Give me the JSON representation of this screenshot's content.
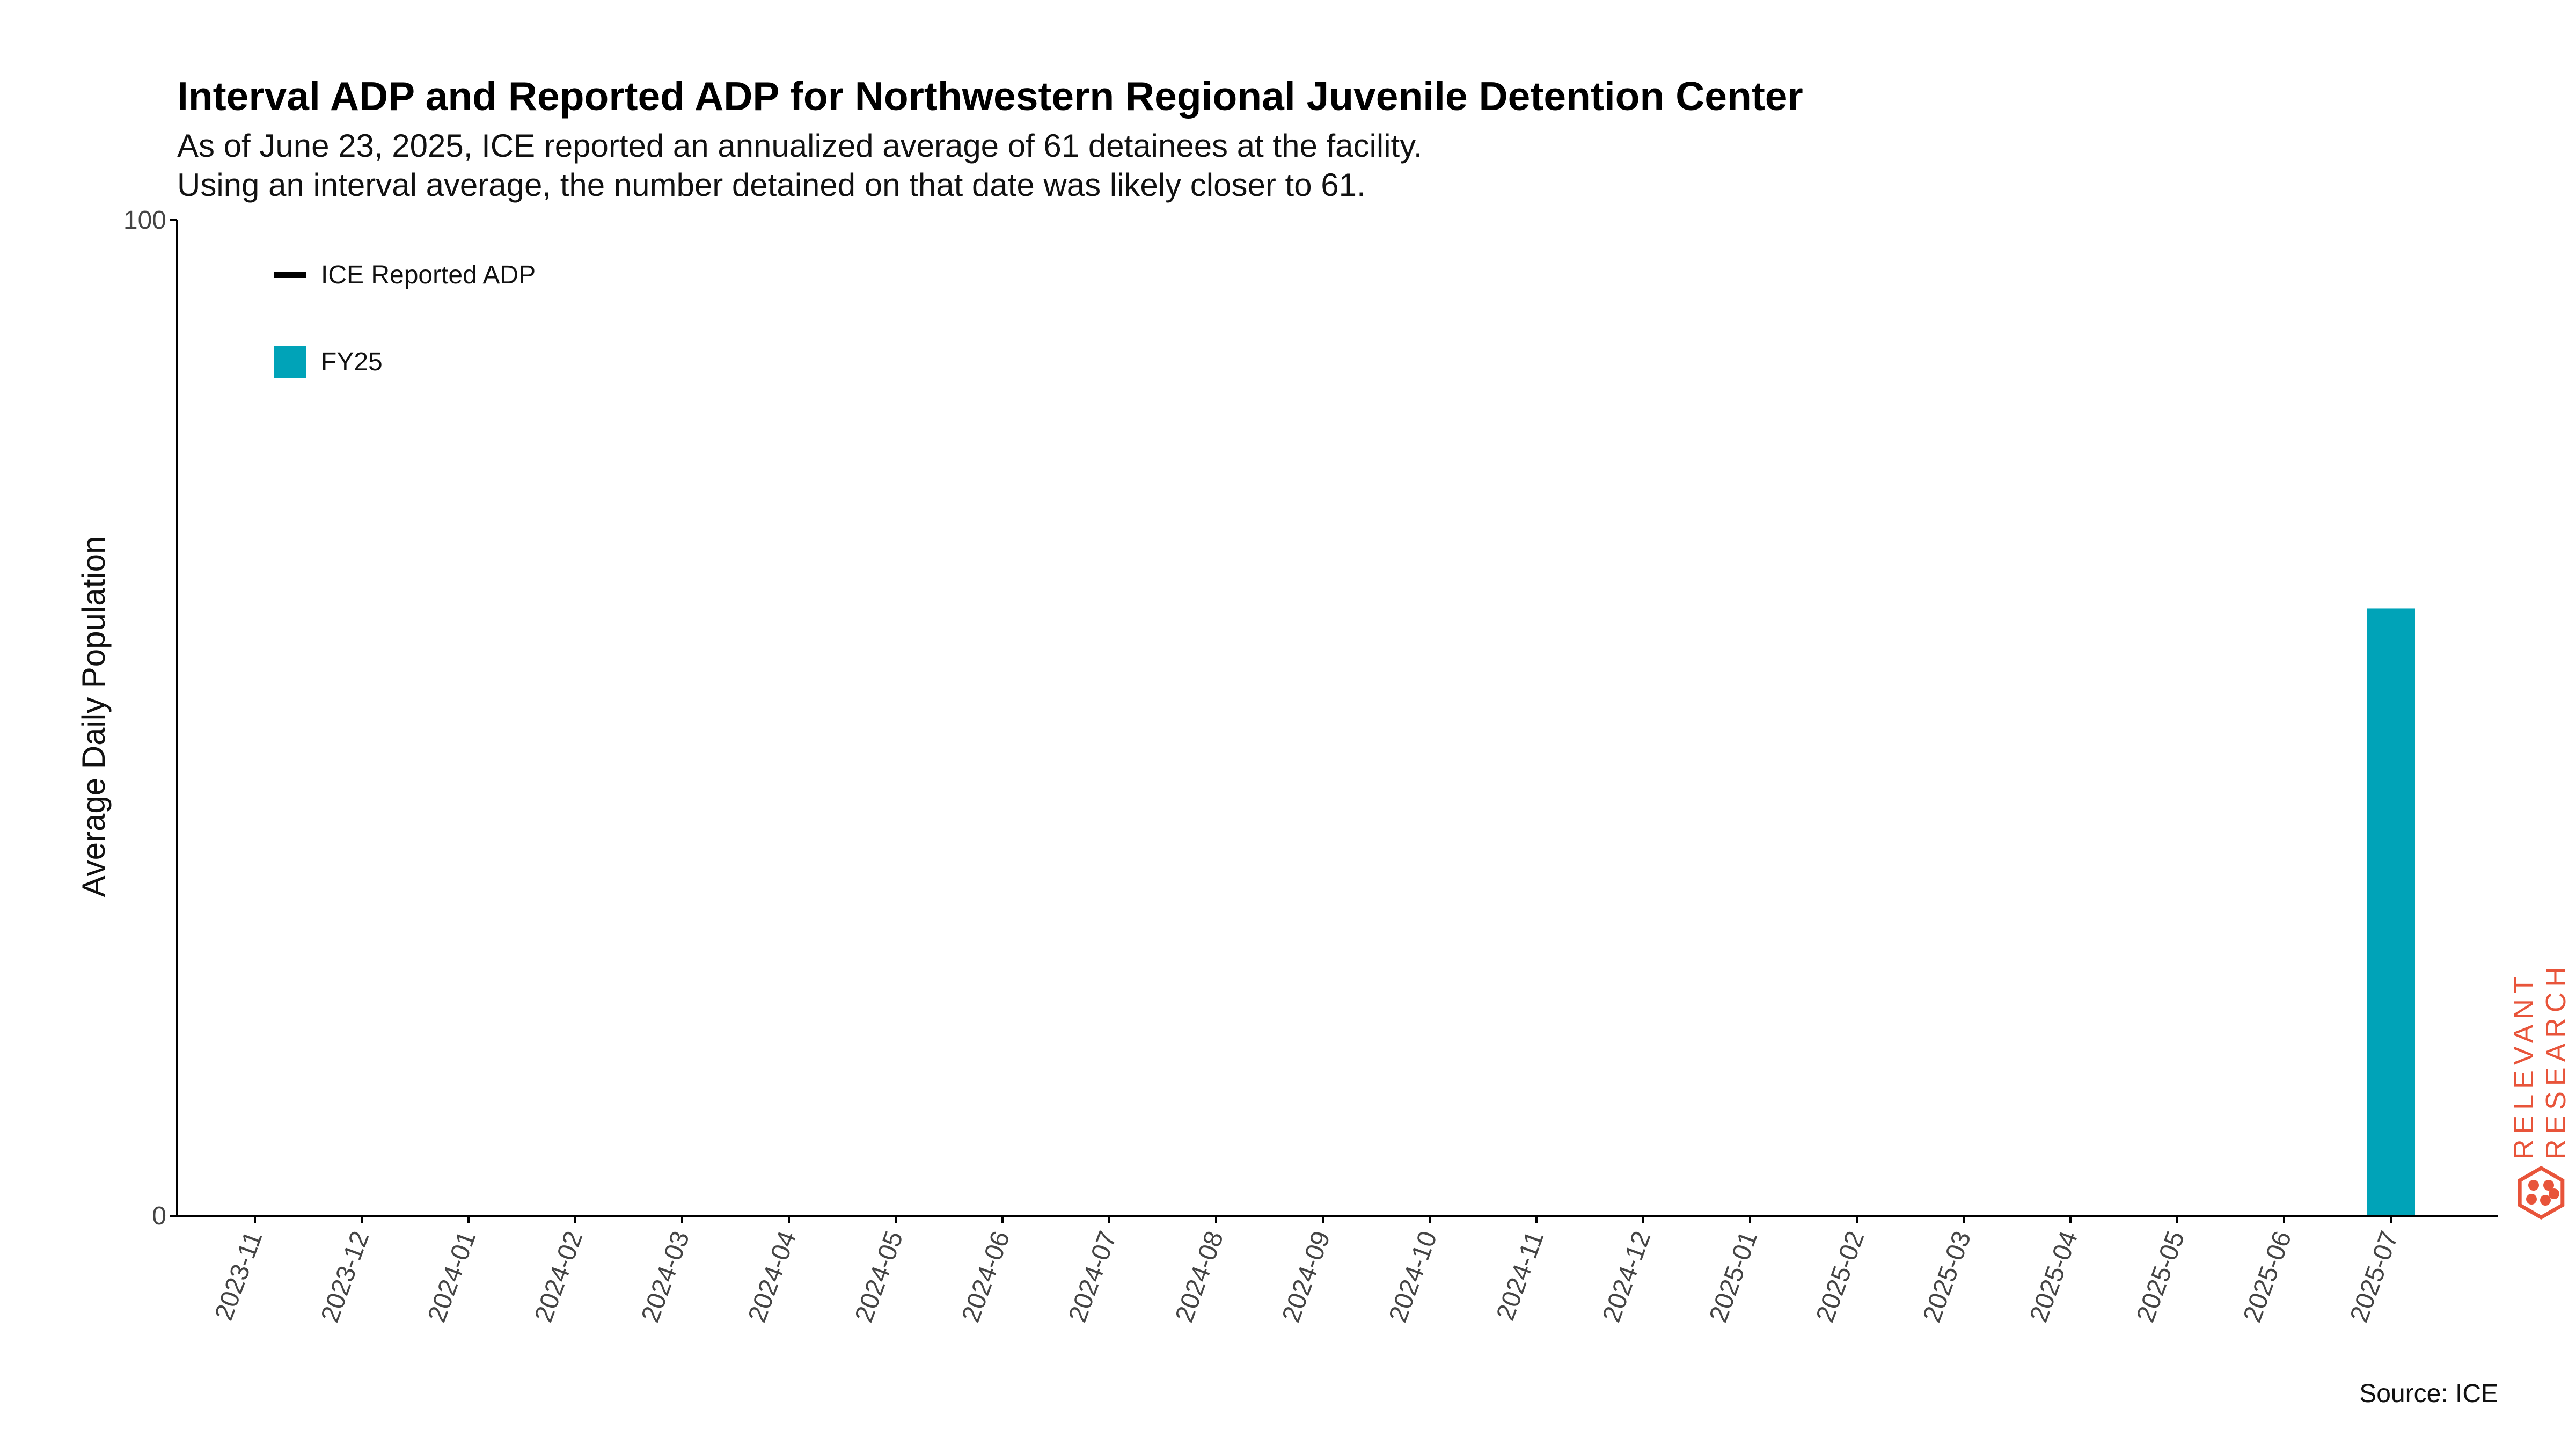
{
  "chart_data": {
    "type": "bar",
    "title": "Interval ADP and Reported ADP for Northwestern Regional Juvenile Detention Center",
    "subtitle_lines": [
      "As of June 23, 2025, ICE reported an annualized average of 61 detainees at the facility.",
      "Using an interval average, the number detained on that date was likely closer to 61."
    ],
    "xlabel": "",
    "ylabel": "Average Daily Population",
    "ylim": [
      0,
      100
    ],
    "yticks": [
      0,
      100
    ],
    "categories": [
      "2023-11",
      "2023-12",
      "2024-01",
      "2024-02",
      "2024-03",
      "2024-04",
      "2024-05",
      "2024-06",
      "2024-07",
      "2024-08",
      "2024-09",
      "2024-10",
      "2024-11",
      "2024-12",
      "2025-01",
      "2025-02",
      "2025-03",
      "2025-04",
      "2025-05",
      "2025-06",
      "2025-07"
    ],
    "series": [
      {
        "name": "FY25",
        "color": "#00a3b8",
        "values": [
          null,
          null,
          null,
          null,
          null,
          null,
          null,
          null,
          null,
          null,
          null,
          null,
          null,
          null,
          null,
          null,
          null,
          null,
          null,
          null,
          61
        ]
      }
    ],
    "legend": {
      "placement": "top-left",
      "entries": [
        {
          "label": "ICE Reported ADP",
          "marker": "line",
          "color": "#000000"
        },
        {
          "label": "FY25",
          "marker": "square",
          "color": "#00a3b8"
        }
      ]
    },
    "grid": false,
    "source": "Source: ICE"
  },
  "branding": {
    "line1": "RELEVANT",
    "line2": "RESEARCH",
    "icon": "hexagon-dots-logo-icon",
    "color": "#e8543a"
  }
}
